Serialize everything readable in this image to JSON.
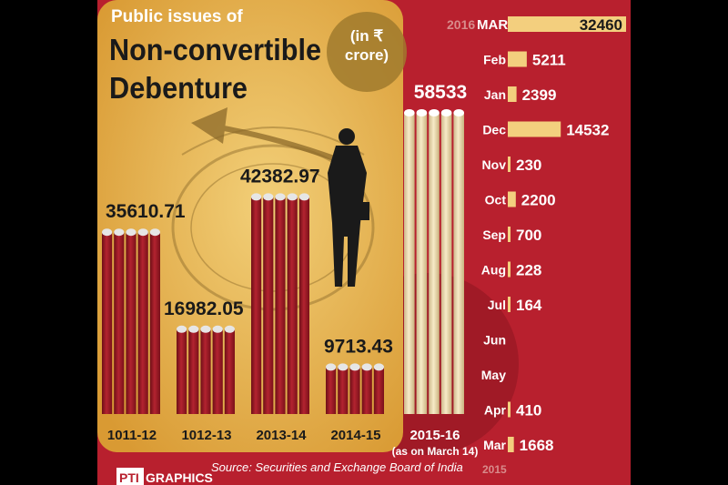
{
  "header": {
    "kicker": "Public issues of",
    "title_line1": "Non-convertible",
    "title_line2": "Debenture",
    "unit_line1": "(in ₹",
    "unit_line2": "crore)"
  },
  "source": "Source: Securities and Exchange Board of India",
  "brand": {
    "pti": "PTI",
    "graphics": "GRAPHICS"
  },
  "colors": {
    "background": "#b8202e",
    "panel": "#e7b24a",
    "bar_red": "#a51b25",
    "bar_cream": "#f1dfb0",
    "monthly_bar": "#f3cf7e",
    "text_dark": "#1a1a1a",
    "text_light": "#ffffff"
  },
  "chart_data": [
    {
      "type": "bar",
      "categories": [
        "1011-12",
        "1012-13",
        "2013-14",
        "2014-15",
        "2015-16"
      ],
      "category_notes": [
        "",
        "",
        "",
        "",
        "(as on March 14)"
      ],
      "values": [
        35610.71,
        16982.05,
        42382.97,
        9713.43,
        58533
      ],
      "value_labels": [
        "35610.71",
        "16982.05",
        "42382.97",
        "9713.43",
        "58533"
      ],
      "highlight_index": 4
    },
    {
      "type": "bar",
      "orientation": "horizontal",
      "year_top": "2016",
      "year_bottom": "2015",
      "categories": [
        "MAR",
        "Feb",
        "Jan",
        "Dec",
        "Nov",
        "Oct",
        "Sep",
        "Aug",
        "Jul",
        "Jun",
        "May",
        "Apr",
        "Mar"
      ],
      "values": [
        32460,
        5211,
        2399,
        14532,
        230,
        2200,
        700,
        228,
        164,
        null,
        null,
        410,
        1668
      ],
      "value_labels": [
        "32460",
        "5211",
        "2399",
        "14532",
        "230",
        "2200",
        "700",
        "228",
        "164",
        "",
        "",
        "410",
        "1668"
      ]
    }
  ]
}
